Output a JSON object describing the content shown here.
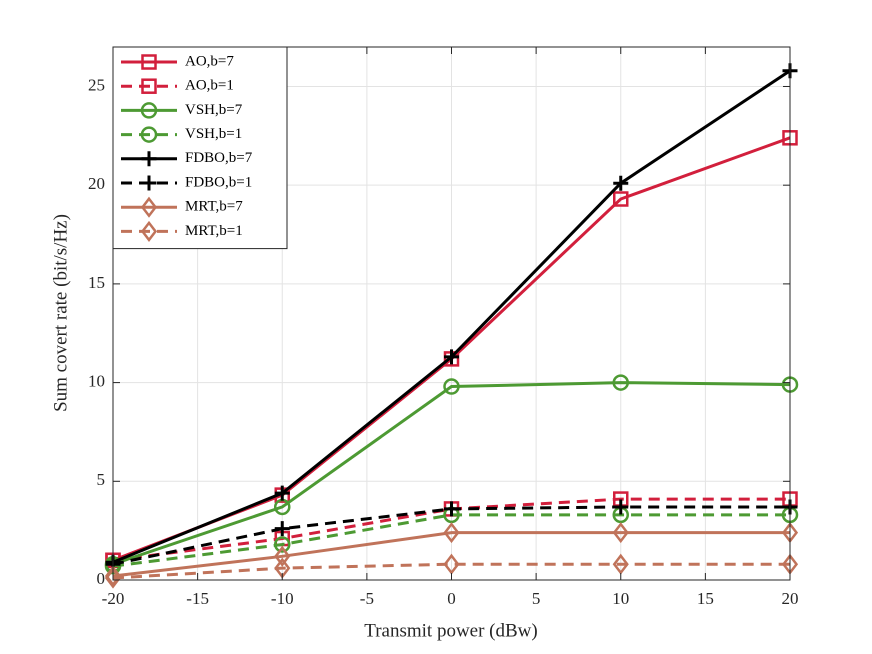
{
  "chart_data": {
    "type": "line",
    "x_label": "Transmit power (dBw)",
    "y_label": "Sum covert rate (bit/s/Hz)",
    "x": [
      -20,
      -10,
      0,
      10,
      20
    ],
    "xlim": [
      -20,
      20
    ],
    "xticks": [
      -20,
      -15,
      -10,
      -5,
      0,
      5,
      10,
      15,
      20
    ],
    "ylim": [
      0,
      27
    ],
    "yticks": [
      0,
      5,
      10,
      15,
      20,
      25
    ],
    "grid": true,
    "legend": "upper left",
    "series": [
      {
        "name": "AO,b=7",
        "color": "#d21f3c",
        "marker": "square",
        "dashed": false,
        "values": [
          1.0,
          4.3,
          11.2,
          19.3,
          22.4
        ]
      },
      {
        "name": "AO,b=1",
        "color": "#d21f3c",
        "marker": "square",
        "dashed": true,
        "values": [
          1.0,
          2.1,
          3.6,
          4.1,
          4.1
        ]
      },
      {
        "name": "VSH,b=7",
        "color": "#4d9a33",
        "marker": "circle",
        "dashed": false,
        "values": [
          0.8,
          3.7,
          9.8,
          10.0,
          9.9
        ]
      },
      {
        "name": "VSH,b=1",
        "color": "#4d9a33",
        "marker": "circle",
        "dashed": true,
        "values": [
          0.7,
          1.8,
          3.3,
          3.3,
          3.3
        ]
      },
      {
        "name": "FDBO,b=7",
        "color": "#000000",
        "marker": "plus",
        "dashed": false,
        "values": [
          0.9,
          4.4,
          11.3,
          20.1,
          25.8
        ]
      },
      {
        "name": "FDBO,b=1",
        "color": "#000000",
        "marker": "plus",
        "dashed": true,
        "values": [
          0.8,
          2.6,
          3.6,
          3.7,
          3.7
        ]
      },
      {
        "name": "MRT,b=7",
        "color": "#c0735a",
        "marker": "diamond",
        "dashed": false,
        "values": [
          0.2,
          1.2,
          2.4,
          2.4,
          2.4
        ]
      },
      {
        "name": "MRT,b=1",
        "color": "#c0735a",
        "marker": "diamond",
        "dashed": true,
        "values": [
          0.1,
          0.6,
          0.8,
          0.8,
          0.8
        ]
      }
    ]
  }
}
